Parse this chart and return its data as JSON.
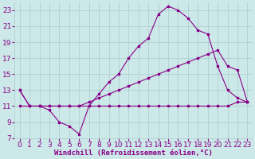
{
  "xlabel": "Windchill (Refroidissement éolien,°C)",
  "background_color": "#cce8e8",
  "grid_color": "#aacccc",
  "line_color": "#880088",
  "xlim": [
    -0.5,
    23.5
  ],
  "ylim": [
    7,
    24
  ],
  "xticks": [
    0,
    1,
    2,
    3,
    4,
    5,
    6,
    7,
    8,
    9,
    10,
    11,
    12,
    13,
    14,
    15,
    16,
    17,
    18,
    19,
    20,
    21,
    22,
    23
  ],
  "yticks": [
    7,
    9,
    11,
    13,
    15,
    17,
    19,
    21,
    23
  ],
  "line1_x": [
    0,
    1,
    2,
    3,
    4,
    5,
    6,
    7,
    8,
    9,
    10,
    11,
    12,
    13,
    14,
    15,
    16,
    17,
    18,
    19,
    20,
    21,
    22,
    23
  ],
  "line1_y": [
    13,
    11,
    11,
    10.5,
    9,
    8.5,
    7.5,
    11,
    12.5,
    14,
    15,
    17,
    18.5,
    19.5,
    22.5,
    23.5,
    23,
    22,
    20.5,
    20,
    16,
    13,
    12,
    11.5
  ],
  "line2_x": [
    0,
    1,
    2,
    3,
    4,
    5,
    6,
    7,
    8,
    9,
    10,
    11,
    12,
    13,
    14,
    15,
    16,
    17,
    18,
    19,
    20,
    21,
    22,
    23
  ],
  "line2_y": [
    13,
    11,
    11,
    11,
    11,
    11,
    11,
    11.5,
    12,
    12.5,
    13,
    13.5,
    14,
    14.5,
    15,
    15.5,
    16,
    16.5,
    17,
    17.5,
    18,
    16,
    15.5,
    11.5
  ],
  "line3_x": [
    0,
    1,
    2,
    3,
    4,
    5,
    6,
    7,
    8,
    9,
    10,
    11,
    12,
    13,
    14,
    15,
    16,
    17,
    18,
    19,
    20,
    21,
    22,
    23
  ],
  "line3_y": [
    11,
    11,
    11,
    11,
    11,
    11,
    11,
    11,
    11,
    11,
    11,
    11,
    11,
    11,
    11,
    11,
    11,
    11,
    11,
    11,
    11,
    11,
    11.5,
    11.5
  ]
}
